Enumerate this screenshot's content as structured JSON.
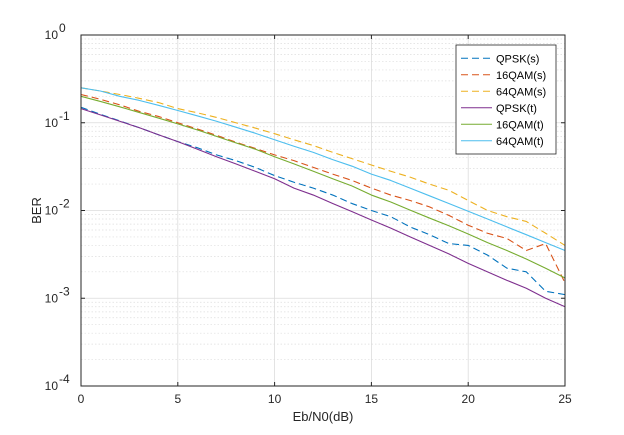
{
  "chart_data": {
    "type": "line",
    "xlabel": "Eb/N0(dB)",
    "ylabel": "BER",
    "xlim": [
      0,
      25
    ],
    "ylim": [
      0.0001,
      1
    ],
    "yscale": "log",
    "grid": true,
    "minor_grid": true,
    "legend_position": "top-right",
    "x_ticks": [
      "0",
      "5",
      "10",
      "15",
      "20",
      "25"
    ],
    "y_ticks": [
      {
        "value": 1,
        "base": "10",
        "exp": "0"
      },
      {
        "value": 0.1,
        "base": "10",
        "exp": "-1"
      },
      {
        "value": 0.01,
        "base": "10",
        "exp": "-2"
      },
      {
        "value": 0.001,
        "base": "10",
        "exp": "-3"
      },
      {
        "value": 0.0001,
        "base": "10",
        "exp": "-4"
      }
    ],
    "x": [
      0,
      1,
      2,
      3,
      4,
      5,
      6,
      7,
      8,
      9,
      10,
      11,
      12,
      13,
      14,
      15,
      16,
      17,
      18,
      19,
      20,
      21,
      22,
      23,
      24,
      25
    ],
    "series": [
      {
        "name": "QPSK(s)",
        "style": "dashed",
        "color": "#0072BD",
        "values": [
          0.15,
          0.125,
          0.105,
          0.088,
          0.073,
          0.061,
          0.052,
          0.043,
          0.037,
          0.031,
          0.025,
          0.021,
          0.018,
          0.015,
          0.012,
          0.01,
          0.0085,
          0.0065,
          0.0053,
          0.0042,
          0.004,
          0.0031,
          0.0022,
          0.002,
          0.0012,
          0.0011
        ]
      },
      {
        "name": "16QAM(s)",
        "style": "dashed",
        "color": "#D95319",
        "values": [
          0.21,
          0.185,
          0.16,
          0.135,
          0.118,
          0.1,
          0.085,
          0.072,
          0.06,
          0.051,
          0.043,
          0.037,
          0.031,
          0.026,
          0.022,
          0.018,
          0.015,
          0.013,
          0.011,
          0.0088,
          0.0068,
          0.0055,
          0.0048,
          0.0035,
          0.0042,
          0.0015
        ]
      },
      {
        "name": "64QAM(s)",
        "style": "dashed",
        "color": "#EDB120",
        "values": [
          0.25,
          0.23,
          0.21,
          0.19,
          0.17,
          0.145,
          0.13,
          0.115,
          0.1,
          0.087,
          0.075,
          0.064,
          0.055,
          0.046,
          0.039,
          0.033,
          0.028,
          0.024,
          0.02,
          0.017,
          0.013,
          0.01,
          0.0085,
          0.0075,
          0.0055,
          0.004
        ]
      },
      {
        "name": "QPSK(t)",
        "style": "solid",
        "color": "#7E2F8E",
        "values": [
          0.145,
          0.123,
          0.104,
          0.088,
          0.073,
          0.061,
          0.05,
          0.041,
          0.034,
          0.028,
          0.023,
          0.018,
          0.015,
          0.012,
          0.0097,
          0.0078,
          0.0063,
          0.005,
          0.004,
          0.0032,
          0.0025,
          0.002,
          0.0016,
          0.0013,
          0.001,
          0.0008
        ]
      },
      {
        "name": "16QAM(t)",
        "style": "solid",
        "color": "#77AC30",
        "values": [
          0.2,
          0.175,
          0.152,
          0.131,
          0.113,
          0.097,
          0.083,
          0.07,
          0.059,
          0.05,
          0.041,
          0.034,
          0.028,
          0.023,
          0.019,
          0.015,
          0.0125,
          0.0101,
          0.0082,
          0.0067,
          0.0054,
          0.0043,
          0.0035,
          0.0028,
          0.0022,
          0.0017
        ]
      },
      {
        "name": "64QAM(t)",
        "style": "solid",
        "color": "#4DBEEE",
        "values": [
          0.25,
          0.23,
          0.2,
          0.18,
          0.158,
          0.138,
          0.12,
          0.104,
          0.089,
          0.076,
          0.064,
          0.054,
          0.046,
          0.038,
          0.032,
          0.026,
          0.022,
          0.018,
          0.0147,
          0.012,
          0.0098,
          0.008,
          0.0065,
          0.0053,
          0.0043,
          0.0035
        ]
      }
    ]
  }
}
